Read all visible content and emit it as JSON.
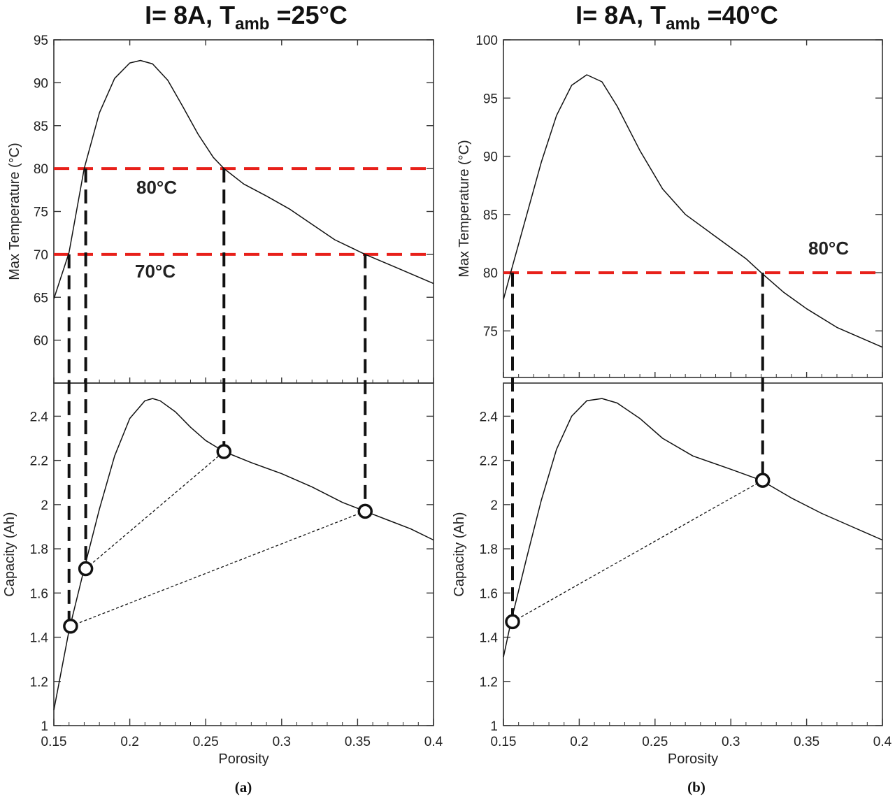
{
  "chart_data": [
    {
      "panel": "(a)",
      "type": "line",
      "title": {
        "prefix": "I= 8A, T",
        "sub": "amb",
        "suffix": " =25°C"
      },
      "xlabel": "Porosity",
      "xlim": [
        0.15,
        0.4
      ],
      "xticks": [
        0.15,
        0.2,
        0.25,
        0.3,
        0.35,
        0.4
      ],
      "x_tick_labels": [
        "0.15",
        "0.2",
        "0.25",
        "0.3",
        "0.35",
        "0.4"
      ],
      "top": {
        "ylabel": "Max Temperature (°C)",
        "ylim": [
          55,
          95
        ],
        "yticks": [
          60,
          65,
          70,
          75,
          80,
          85,
          90,
          95
        ],
        "y_tick_labels": [
          "60",
          "65",
          "70",
          "75",
          "80",
          "85",
          "90",
          "95"
        ],
        "series": [
          {
            "name": "Max Temperature",
            "x": [
              0.15,
              0.16,
              0.17,
              0.18,
              0.19,
              0.2,
              0.207,
              0.215,
              0.225,
              0.235,
              0.245,
              0.255,
              0.262,
              0.275,
              0.29,
              0.305,
              0.32,
              0.335,
              0.355,
              0.375,
              0.4
            ],
            "y": [
              64.8,
              70.2,
              80,
              86.5,
              90.5,
              92.3,
              92.6,
              92.2,
              90.3,
              87.2,
              84,
              81.3,
              80,
              78.2,
              76.8,
              75.3,
              73.5,
              71.7,
              70,
              68.5,
              66.6
            ]
          }
        ],
        "reference_lines": [
          {
            "y": 80,
            "label": "80°C"
          },
          {
            "y": 70,
            "label": "70°C"
          }
        ]
      },
      "bottom": {
        "ylabel": "Capacity (Ah)",
        "ylim": [
          1,
          2.55
        ],
        "yticks": [
          1,
          1.2,
          1.4,
          1.6,
          1.8,
          2,
          2.2,
          2.4
        ],
        "y_tick_labels": [
          "1",
          "1.2",
          "1.4",
          "1.6",
          "1.8",
          "2",
          "2.2",
          "2.4"
        ],
        "series": [
          {
            "name": "Capacity",
            "x": [
              0.15,
              0.16,
              0.17,
              0.18,
              0.19,
              0.2,
              0.21,
              0.215,
              0.22,
              0.23,
              0.24,
              0.25,
              0.262,
              0.28,
              0.3,
              0.32,
              0.34,
              0.355,
              0.37,
              0.385,
              0.4
            ],
            "y": [
              1.07,
              1.43,
              1.71,
              1.98,
              2.22,
              2.39,
              2.47,
              2.48,
              2.47,
              2.42,
              2.35,
              2.29,
              2.24,
              2.19,
              2.14,
              2.08,
              2.01,
              1.97,
              1.93,
              1.89,
              1.84
            ]
          }
        ],
        "markers": [
          {
            "x": 0.161,
            "y": 1.45
          },
          {
            "x": 0.171,
            "y": 1.71
          },
          {
            "x": 0.262,
            "y": 2.24
          },
          {
            "x": 0.355,
            "y": 1.97
          }
        ],
        "connectors": [
          [
            0,
            3
          ],
          [
            1,
            2
          ]
        ]
      },
      "drop_lines_x": [
        0.16,
        0.171,
        0.262,
        0.355
      ],
      "caption": "(a)"
    },
    {
      "panel": "(b)",
      "type": "line",
      "title": {
        "prefix": "I= 8A, T",
        "sub": "amb",
        "suffix": " =40°C"
      },
      "xlabel": "Porosity",
      "xlim": [
        0.15,
        0.4
      ],
      "xticks": [
        0.15,
        0.2,
        0.25,
        0.3,
        0.35,
        0.4
      ],
      "x_tick_labels": [
        "0.15",
        "0.2",
        "0.25",
        "0.3",
        "0.35",
        "0.4"
      ],
      "top": {
        "ylabel": "Max Temperature (°C)",
        "ylim": [
          71,
          100
        ],
        "yticks": [
          75,
          80,
          85,
          90,
          95,
          100
        ],
        "y_tick_labels": [
          "75",
          "80",
          "85",
          "90",
          "95",
          "100"
        ],
        "series": [
          {
            "name": "Max Temperature",
            "x": [
              0.15,
              0.155,
              0.165,
              0.175,
              0.185,
              0.195,
              0.205,
              0.215,
              0.225,
              0.24,
              0.255,
              0.27,
              0.29,
              0.31,
              0.32,
              0.335,
              0.35,
              0.37,
              0.4
            ],
            "y": [
              77.7,
              80.1,
              84.8,
              89.5,
              93.5,
              96.1,
              97,
              96.4,
              94.3,
              90.5,
              87.2,
              85,
              83.1,
              81.2,
              80,
              78.3,
              76.9,
              75.3,
              73.6
            ]
          }
        ],
        "reference_lines": [
          {
            "y": 80,
            "label": "80°C"
          }
        ]
      },
      "bottom": {
        "ylabel": "Capacity (Ah)",
        "ylim": [
          1,
          2.55
        ],
        "yticks": [
          1,
          1.2,
          1.4,
          1.6,
          1.8,
          2,
          2.2,
          2.4
        ],
        "y_tick_labels": [
          "1",
          "1.2",
          "1.4",
          "1.6",
          "1.8",
          "2",
          "2.2",
          "2.4"
        ],
        "series": [
          {
            "name": "Capacity",
            "x": [
              0.15,
              0.155,
              0.165,
              0.175,
              0.185,
              0.195,
              0.205,
              0.215,
              0.225,
              0.24,
              0.255,
              0.275,
              0.3,
              0.32,
              0.34,
              0.36,
              0.38,
              0.4
            ],
            "y": [
              1.31,
              1.47,
              1.75,
              2.02,
              2.25,
              2.4,
              2.47,
              2.48,
              2.46,
              2.39,
              2.3,
              2.22,
              2.16,
              2.11,
              2.03,
              1.96,
              1.9,
              1.84
            ]
          }
        ],
        "markers": [
          {
            "x": 0.156,
            "y": 1.47
          },
          {
            "x": 0.321,
            "y": 2.11
          }
        ],
        "connectors": [
          [
            0,
            1
          ]
        ]
      },
      "drop_lines_x": [
        0.156,
        0.321
      ],
      "caption": "(b)"
    }
  ]
}
